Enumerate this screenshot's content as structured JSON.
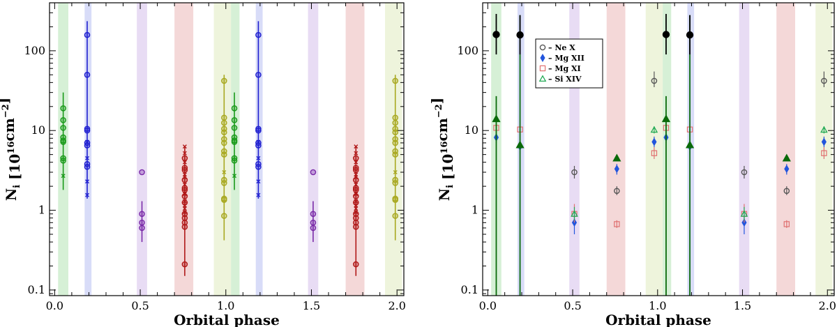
{
  "chart_data": [
    {
      "type": "scatter",
      "panel": "left",
      "xlabel": "Orbital phase",
      "ylabel_main": "N",
      "ylabel_sub": "i",
      "ylabel_units": "[10",
      "ylabel_exp": "16",
      "ylabel_units2": "cm",
      "ylabel_exp2": "−2",
      "ylabel_close": "]",
      "xlim": [
        -0.03,
        2.04
      ],
      "ylim": [
        0.085,
        400
      ],
      "yscale": "log",
      "xticks": [
        0.0,
        0.5,
        1.0,
        1.5,
        2.0
      ],
      "xtick_labels": [
        "0.0",
        "0.5",
        "1.0",
        "1.5",
        "2.0"
      ],
      "yticks": [
        0.1,
        1,
        10,
        100
      ],
      "ytick_labels": [
        "0.1",
        "1",
        "10",
        "100"
      ],
      "bands": [
        {
          "x0": 0.02,
          "x1": 0.08,
          "color": "#d6f0d6"
        },
        {
          "x0": 0.175,
          "x1": 0.215,
          "color": "#d8dcf8"
        },
        {
          "x0": 0.48,
          "x1": 0.54,
          "color": "#e8dcf4"
        },
        {
          "x0": 0.7,
          "x1": 0.81,
          "color": "#f4d8d8"
        },
        {
          "x0": 0.93,
          "x1": 1.03,
          "color": "#eef4dc"
        },
        {
          "x0": 1.03,
          "x1": 1.08,
          "color": "#d6f0d6"
        },
        {
          "x0": 1.175,
          "x1": 1.215,
          "color": "#d8dcf8"
        },
        {
          "x0": 1.48,
          "x1": 1.54,
          "color": "#e8dcf4"
        },
        {
          "x0": 1.7,
          "x1": 1.81,
          "color": "#f4d8d8"
        },
        {
          "x0": 1.93,
          "x1": 2.03,
          "color": "#eef4dc"
        }
      ],
      "groups": [
        {
          "name": "green-1",
          "x": 0.05,
          "color": "#1a9a1a",
          "values": [
            19,
            13.5,
            10.8,
            8.2,
            7.5,
            7.2,
            4.5,
            4.2
          ],
          "crosses": [
            2.7
          ],
          "err_lo": 1.8,
          "err_hi": 30
        },
        {
          "name": "blue-1",
          "x": 0.19,
          "color": "#2020d0",
          "values": [
            158,
            50,
            10.5,
            10,
            7,
            6.5,
            3.8,
            3.5
          ],
          "crosses": [
            7.2,
            4.5,
            2.3,
            1.55
          ],
          "err_lo": 1.4,
          "err_hi": 235
        },
        {
          "name": "purple-1",
          "x": 0.51,
          "color": "#7a2aa8",
          "values": [
            3.0,
            0.9,
            0.7,
            0.6
          ],
          "crosses": [],
          "err_lo": 0.4,
          "err_hi": 1.3
        },
        {
          "name": "red-1",
          "x": 0.76,
          "color": "#b01818",
          "values": [
            4.5,
            3.4,
            3.2,
            2.4,
            1.9,
            1.8,
            1.5,
            1.25,
            0.9,
            0.8,
            0.7,
            0.62,
            0.21
          ],
          "crosses": [
            6.3,
            5.2,
            4.0,
            2.8,
            2.6,
            2.1,
            1.6,
            1.3,
            1.15,
            1.05,
            0.95
          ],
          "err_lo": 0.15,
          "err_hi": 6.3
        },
        {
          "name": "olive-1",
          "x": 0.99,
          "color": "#a8a820",
          "values": [
            42,
            14.5,
            12.5,
            10.5,
            9.5,
            7.8,
            7,
            5.5,
            5,
            2.4,
            2.2,
            1.4,
            1.35,
            0.85
          ],
          "crosses": [
            3.0
          ],
          "err_lo": 0.42,
          "err_hi": 50
        },
        {
          "name": "green-2",
          "x": 1.05,
          "color": "#1a9a1a",
          "values": [
            19,
            13.5,
            10.8,
            8.2,
            7.5,
            7.2,
            4.5,
            4.2
          ],
          "crosses": [
            2.7
          ],
          "err_lo": 1.8,
          "err_hi": 30
        },
        {
          "name": "blue-2",
          "x": 1.19,
          "color": "#2020d0",
          "values": [
            158,
            50,
            10.5,
            10,
            7,
            6.5,
            3.8,
            3.5
          ],
          "crosses": [
            7.2,
            4.5,
            2.3,
            1.55
          ],
          "err_lo": 1.4,
          "err_hi": 235
        },
        {
          "name": "purple-2",
          "x": 1.51,
          "color": "#7a2aa8",
          "values": [
            3.0,
            0.9,
            0.7,
            0.6
          ],
          "crosses": [],
          "err_lo": 0.4,
          "err_hi": 1.3
        },
        {
          "name": "red-2",
          "x": 1.76,
          "color": "#b01818",
          "values": [
            4.5,
            3.4,
            3.2,
            2.4,
            1.9,
            1.8,
            1.5,
            1.25,
            0.9,
            0.8,
            0.7,
            0.62,
            0.21
          ],
          "crosses": [
            6.3,
            5.2,
            4.0,
            2.8,
            2.6,
            2.1,
            1.6,
            1.3,
            1.15,
            1.05,
            0.95
          ],
          "err_lo": 0.15,
          "err_hi": 6.3
        },
        {
          "name": "olive-2",
          "x": 1.99,
          "color": "#a8a820",
          "values": [
            42,
            14.5,
            12.5,
            10.5,
            9.5,
            7.8,
            7,
            5.5,
            5,
            2.4,
            2.2,
            1.4,
            1.35,
            0.85
          ],
          "crosses": [
            3.0
          ],
          "err_lo": 0.42,
          "err_hi": 50
        }
      ]
    },
    {
      "type": "scatter",
      "panel": "right",
      "xlabel": "Orbital phase",
      "ylabel_main": "N",
      "ylabel_sub": "i",
      "ylabel_units": "[10",
      "ylabel_exp": "16",
      "ylabel_units2": "cm",
      "ylabel_exp2": "−2",
      "ylabel_close": "]",
      "xlim": [
        -0.03,
        2.04
      ],
      "ylim": [
        0.085,
        400
      ],
      "yscale": "log",
      "xticks": [
        0.0,
        0.5,
        1.0,
        1.5,
        2.0
      ],
      "xtick_labels": [
        "0.0",
        "0.5",
        "1.0",
        "1.5",
        "2.0"
      ],
      "yticks": [
        0.1,
        1,
        10,
        100
      ],
      "ytick_labels": [
        "0.1",
        "1",
        "10",
        "100"
      ],
      "legend": {
        "position": "top-left",
        "entries": [
          {
            "label": "– Ne X",
            "marker": "circle-open",
            "color": "#555555"
          },
          {
            "label": "– Mg XII",
            "marker": "diamond",
            "color": "#2255dd"
          },
          {
            "label": "– Mg XI",
            "marker": "square-open",
            "color": "#e07070"
          },
          {
            "label": "– Si XIV",
            "marker": "triangle-open",
            "color": "#22aa55"
          }
        ]
      },
      "bands": [
        {
          "x0": 0.02,
          "x1": 0.08,
          "color": "#d6f0d6"
        },
        {
          "x0": 0.175,
          "x1": 0.215,
          "color": "#d8dcf8"
        },
        {
          "x0": 0.48,
          "x1": 0.54,
          "color": "#e8dcf4"
        },
        {
          "x0": 0.7,
          "x1": 0.81,
          "color": "#f4d8d8"
        },
        {
          "x0": 0.93,
          "x1": 1.03,
          "color": "#eef4dc"
        },
        {
          "x0": 1.03,
          "x1": 1.08,
          "color": "#d6f0d6"
        },
        {
          "x0": 1.175,
          "x1": 1.215,
          "color": "#d8dcf8"
        },
        {
          "x0": 1.48,
          "x1": 1.54,
          "color": "#e8dcf4"
        },
        {
          "x0": 1.7,
          "x1": 1.81,
          "color": "#f4d8d8"
        },
        {
          "x0": 1.93,
          "x1": 2.03,
          "color": "#eef4dc"
        }
      ],
      "series": [
        {
          "name": "Ne X",
          "marker": "circle-open",
          "color": "#555555",
          "points": [
            {
              "x": 0.51,
              "y": 3.0,
              "lo": 2.5,
              "hi": 3.6
            },
            {
              "x": 0.76,
              "y": 1.75,
              "lo": 1.55,
              "hi": 2.0
            },
            {
              "x": 0.98,
              "y": 42,
              "lo": 35,
              "hi": 55
            },
            {
              "x": 1.51,
              "y": 3.0,
              "lo": 2.5,
              "hi": 3.6
            },
            {
              "x": 1.76,
              "y": 1.75,
              "lo": 1.55,
              "hi": 2.0
            },
            {
              "x": 1.98,
              "y": 42,
              "lo": 35,
              "hi": 55
            }
          ]
        },
        {
          "name": "Mg XII",
          "marker": "diamond",
          "color": "#2255dd",
          "points": [
            {
              "x": 0.05,
              "y": 8.2,
              "lo": 7.0,
              "hi": 9.5
            },
            {
              "x": 0.19,
              "y": 6.3,
              "lo": 5.0,
              "hi": 7.8
            },
            {
              "x": 0.51,
              "y": 0.7,
              "lo": 0.5,
              "hi": 0.9
            },
            {
              "x": 0.76,
              "y": 3.3,
              "lo": 2.8,
              "hi": 3.8
            },
            {
              "x": 0.98,
              "y": 7.2,
              "lo": 6.2,
              "hi": 8.4
            },
            {
              "x": 1.05,
              "y": 8.2,
              "lo": 7.0,
              "hi": 9.5
            },
            {
              "x": 1.19,
              "y": 6.3,
              "lo": 5.0,
              "hi": 7.8
            },
            {
              "x": 1.51,
              "y": 0.7,
              "lo": 0.5,
              "hi": 0.9
            },
            {
              "x": 1.76,
              "y": 3.3,
              "lo": 2.8,
              "hi": 3.8
            },
            {
              "x": 1.98,
              "y": 7.2,
              "lo": 6.2,
              "hi": 8.4
            }
          ]
        },
        {
          "name": "Mg XI",
          "marker": "square-open",
          "color": "#e07070",
          "points": [
            {
              "x": 0.05,
              "y": 10.8,
              "lo": 9.0,
              "hi": 12.5
            },
            {
              "x": 0.19,
              "y": 10.3,
              "lo": 8.5,
              "hi": 12.0
            },
            {
              "x": 0.51,
              "y": 0.9,
              "lo": 0.7,
              "hi": 1.2
            },
            {
              "x": 0.76,
              "y": 0.67,
              "lo": 0.6,
              "hi": 0.75
            },
            {
              "x": 0.98,
              "y": 5.2,
              "lo": 4.4,
              "hi": 6.2
            },
            {
              "x": 1.05,
              "y": 10.8,
              "lo": 9.0,
              "hi": 12.5
            },
            {
              "x": 1.19,
              "y": 10.3,
              "lo": 8.5,
              "hi": 12.0
            },
            {
              "x": 1.51,
              "y": 0.9,
              "lo": 0.7,
              "hi": 1.2
            },
            {
              "x": 1.76,
              "y": 0.67,
              "lo": 0.6,
              "hi": 0.75
            },
            {
              "x": 1.98,
              "y": 5.2,
              "lo": 4.4,
              "hi": 6.2
            }
          ]
        },
        {
          "name": "Si XIV",
          "marker": "triangle-open",
          "color": "#22aa55",
          "points": [
            {
              "x": 0.51,
              "y": 0.9,
              "lo": 0.75,
              "hi": 1.1
            },
            {
              "x": 0.98,
              "y": 10.2,
              "lo": 9.2,
              "hi": 11.3
            },
            {
              "x": 1.51,
              "y": 0.9,
              "lo": 0.75,
              "hi": 1.1
            },
            {
              "x": 1.98,
              "y": 10.2,
              "lo": 9.2,
              "hi": 11.3
            }
          ]
        },
        {
          "name": "total-filled-triangle",
          "marker": "triangle-filled",
          "color": "#0a6a0a",
          "points": [
            {
              "x": 0.05,
              "y": 14,
              "lo": 0.08,
              "hi": 27
            },
            {
              "x": 0.19,
              "y": 6.6,
              "lo": 0.08,
              "hi": 280
            },
            {
              "x": 0.76,
              "y": 4.5,
              "lo": 4.2,
              "hi": 4.8
            },
            {
              "x": 1.05,
              "y": 14,
              "lo": 0.08,
              "hi": 27
            },
            {
              "x": 1.19,
              "y": 6.6,
              "lo": 0.08,
              "hi": 280
            },
            {
              "x": 1.76,
              "y": 4.5,
              "lo": 4.2,
              "hi": 4.8
            }
          ]
        },
        {
          "name": "total-filled-circle",
          "marker": "circle-filled",
          "color": "#000000",
          "points": [
            {
              "x": 0.05,
              "y": 160,
              "lo": 90,
              "hi": 290
            },
            {
              "x": 0.19,
              "y": 158,
              "lo": 90,
              "hi": 280
            },
            {
              "x": 1.05,
              "y": 160,
              "lo": 90,
              "hi": 290
            },
            {
              "x": 1.19,
              "y": 158,
              "lo": 90,
              "hi": 280
            }
          ]
        }
      ]
    }
  ]
}
